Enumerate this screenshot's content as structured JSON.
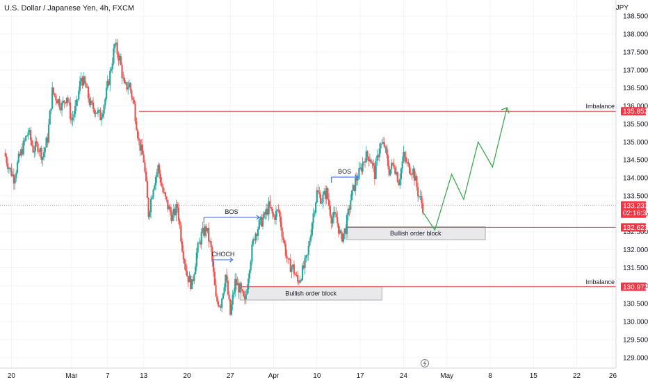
{
  "title": "U.S. Dollar / Japanese Yen, 4h, FXCM",
  "currency_label": "JPY",
  "colors": {
    "up": "#26a69a",
    "down": "#ef5350",
    "level": "#e04848",
    "bos": "#2962ff",
    "projection": "#3aa84a",
    "ob_fill": "#e9e9eb",
    "ob_stroke": "#9a9a9a",
    "tag": "#f23645"
  },
  "chart_data": {
    "type": "candlestick",
    "title": "U.S. Dollar / Japanese Yen, 4h, FXCM",
    "ylabel": "JPY",
    "ylim": [
      128.9,
      138.6
    ],
    "xlim": [
      0,
      126
    ],
    "y_ticks": [
      "129.000",
      "129.500",
      "130.000",
      "130.500",
      "131.000",
      "131.500",
      "132.000",
      "132.500",
      "133.000",
      "133.500",
      "134.000",
      "134.500",
      "135.000",
      "135.500",
      "136.000",
      "136.500",
      "137.000",
      "137.500",
      "138.000",
      "138.500"
    ],
    "x_ticks": [
      {
        "label": "20",
        "x": 1.5
      },
      {
        "label": "Mar",
        "x": 14
      },
      {
        "label": "7",
        "x": 21.5
      },
      {
        "label": "13",
        "x": 29
      },
      {
        "label": "20",
        "x": 38
      },
      {
        "label": "27",
        "x": 47
      },
      {
        "label": "Apr",
        "x": 56
      },
      {
        "label": "10",
        "x": 65
      },
      {
        "label": "17",
        "x": 74
      },
      {
        "label": "24",
        "x": 83
      },
      {
        "label": "May",
        "x": 92
      },
      {
        "label": "8",
        "x": 101
      },
      {
        "label": "15",
        "x": 110
      },
      {
        "label": "22",
        "x": 119
      },
      {
        "label": "26",
        "x": 126.5
      }
    ],
    "close_path": [
      [
        0,
        134.7
      ],
      [
        1,
        134.3
      ],
      [
        2,
        134.0
      ],
      [
        3,
        134.5
      ],
      [
        4,
        134.9
      ],
      [
        5,
        135.3
      ],
      [
        6,
        134.8
      ],
      [
        7,
        134.9
      ],
      [
        8,
        134.6
      ],
      [
        9,
        135.1
      ],
      [
        10,
        136.4
      ],
      [
        11,
        136.2
      ],
      [
        12,
        136.0
      ],
      [
        13,
        136.3
      ],
      [
        14,
        135.6
      ],
      [
        15,
        136.0
      ],
      [
        16,
        136.8
      ],
      [
        17,
        136.5
      ],
      [
        18,
        136.0
      ],
      [
        19,
        135.9
      ],
      [
        20,
        135.7
      ],
      [
        21,
        136.2
      ],
      [
        22,
        136.9
      ],
      [
        23,
        137.7
      ],
      [
        24,
        137.3
      ],
      [
        25,
        136.5
      ],
      [
        26,
        136.6
      ],
      [
        27,
        136.0
      ],
      [
        28,
        135.0
      ],
      [
        29,
        134.5
      ],
      [
        30,
        133.0
      ],
      [
        31,
        133.8
      ],
      [
        32,
        134.3
      ],
      [
        33,
        133.6
      ],
      [
        34,
        133.2
      ],
      [
        35,
        132.9
      ],
      [
        36,
        133.2
      ],
      [
        37,
        132.1
      ],
      [
        38,
        131.3
      ],
      [
        39,
        131.0
      ],
      [
        40,
        131.9
      ],
      [
        41,
        132.4
      ],
      [
        42,
        132.6
      ],
      [
        43,
        132.0
      ],
      [
        44,
        130.6
      ],
      [
        45,
        130.5
      ],
      [
        46,
        131.3
      ],
      [
        47,
        130.2
      ],
      [
        48,
        131.1
      ],
      [
        49,
        130.9
      ],
      [
        50,
        130.5
      ],
      [
        51,
        131.6
      ],
      [
        52,
        132.4
      ],
      [
        53,
        132.7
      ],
      [
        54,
        132.9
      ],
      [
        55,
        133.2
      ],
      [
        56,
        132.9
      ],
      [
        57,
        133.1
      ],
      [
        58,
        132.3
      ],
      [
        59,
        131.6
      ],
      [
        60,
        131.5
      ],
      [
        61,
        131.1
      ],
      [
        62,
        131.4
      ],
      [
        63,
        131.8
      ],
      [
        64,
        132.8
      ],
      [
        65,
        133.6
      ],
      [
        66,
        133.4
      ],
      [
        67,
        133.6
      ],
      [
        68,
        132.9
      ],
      [
        69,
        132.9
      ],
      [
        70,
        132.3
      ],
      [
        71,
        132.6
      ],
      [
        72,
        133.4
      ],
      [
        73,
        133.9
      ],
      [
        74,
        134.2
      ],
      [
        75,
        134.6
      ],
      [
        76,
        134.6
      ],
      [
        77,
        134.1
      ],
      [
        78,
        134.9
      ],
      [
        79,
        134.9
      ],
      [
        80,
        134.2
      ],
      [
        81,
        134.4
      ],
      [
        82,
        133.9
      ],
      [
        83,
        134.6
      ],
      [
        84,
        134.3
      ],
      [
        85,
        134.2
      ],
      [
        86,
        133.6
      ],
      [
        87,
        133.2
      ]
    ],
    "current_price": 133.233,
    "current_price_label": "133.233",
    "countdown_label": "02:16:38",
    "levels": [
      {
        "price": 135.852,
        "label": "135.852",
        "annotation": "Imbalance",
        "x_start": 28
      },
      {
        "price": 132.623,
        "label": "132.623",
        "annotation": "",
        "x_start": 71
      },
      {
        "price": 130.972,
        "label": "130.972",
        "annotation": "Imbalance",
        "x_start": 49
      }
    ],
    "order_blocks": [
      {
        "label": "Bullish order block",
        "x0": 49,
        "x1": 78.5,
        "y_top": 130.97,
        "y_bottom": 130.6
      },
      {
        "label": "Bullish order block",
        "x0": 71,
        "x1": 100,
        "y_top": 132.64,
        "y_bottom": 132.28
      }
    ],
    "structure_marks": [
      {
        "label": "BOS",
        "x0": 41.5,
        "x1": 53,
        "y": 132.9
      },
      {
        "label": "CHOCH",
        "x0": 43.5,
        "x1": 47.5,
        "y": 131.72
      },
      {
        "label": "BOS",
        "x0": 68,
        "x1": 73.5,
        "y": 134.02
      }
    ],
    "projection": [
      [
        87,
        133.05
      ],
      [
        89.5,
        132.55
      ],
      [
        93,
        134.1
      ],
      [
        95.5,
        133.4
      ],
      [
        98.5,
        135.0
      ],
      [
        101.5,
        134.3
      ],
      [
        104.5,
        135.95
      ]
    ]
  }
}
